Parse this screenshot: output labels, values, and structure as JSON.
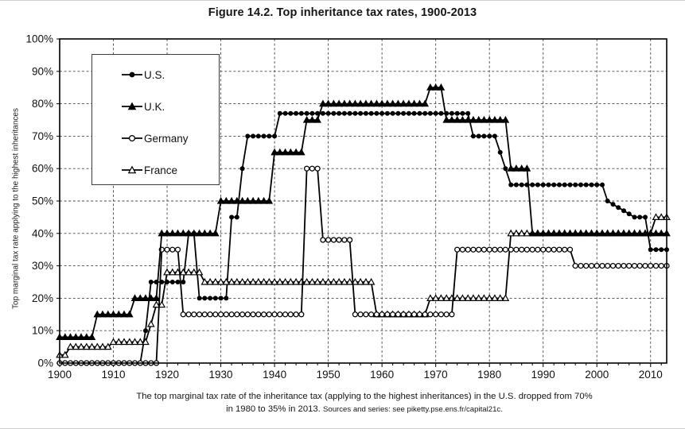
{
  "title": "Figure 14.2. Top inheritance tax rates, 1900-2013",
  "caption": {
    "line1": "The top marginal tax rate of the inheritance tax (applying to the highest inheritances) in the U.S. dropped from 70%",
    "line2_main": "in 1980 to 35% in 2013.",
    "source": "Sources and series: see piketty.pse.ens.fr/capital21c."
  },
  "legend": [
    {
      "id": "us",
      "label": "U.S.",
      "marker": "filled-circle"
    },
    {
      "id": "uk",
      "label": "U.K.",
      "marker": "filled-triangle"
    },
    {
      "id": "germany",
      "label": "Germany",
      "marker": "open-circle"
    },
    {
      "id": "france",
      "label": "France",
      "marker": "open-triangle"
    }
  ],
  "colors": {
    "line": "#000000",
    "grid": "#4a4a4a",
    "background": "#ffffff",
    "text": "#111111"
  },
  "chart_data": {
    "type": "line",
    "title": "Figure 14.2. Top inheritance tax rates, 1900-2013",
    "xlabel": "",
    "ylabel": "Top marginal tax rate applying to the highest inheritances",
    "x_range": [
      1900,
      2013
    ],
    "y_range": [
      0,
      100
    ],
    "x_ticks": [
      1900,
      1910,
      1920,
      1930,
      1940,
      1950,
      1960,
      1970,
      1980,
      1990,
      2000,
      2010
    ],
    "y_tick_values": [
      0,
      10,
      20,
      30,
      40,
      50,
      60,
      70,
      80,
      90,
      100
    ],
    "y_tick_labels": [
      "0%",
      "10%",
      "20%",
      "30%",
      "40%",
      "50%",
      "60%",
      "70%",
      "80%",
      "90%",
      "100%"
    ],
    "grid": true,
    "legend_position": "upper left",
    "marker_step_years": 1,
    "draw_order": [
      "us",
      "france",
      "germany",
      "uk"
    ],
    "series": [
      {
        "id": "us",
        "name": "U.S.",
        "marker": "filled-circle",
        "segments": [
          [
            1900,
            1915,
            0
          ],
          [
            1916,
            1916,
            10
          ],
          [
            1917,
            1923,
            25
          ],
          [
            1924,
            1925,
            40
          ],
          [
            1926,
            1931,
            20
          ],
          [
            1932,
            1933,
            45
          ],
          [
            1934,
            1934,
            60
          ],
          [
            1935,
            1940,
            70
          ],
          [
            1941,
            1976,
            77
          ],
          [
            1977,
            1981,
            70
          ],
          [
            1982,
            1982,
            65
          ],
          [
            1983,
            1983,
            60
          ],
          [
            1984,
            2001,
            55
          ],
          [
            2002,
            2002,
            50
          ],
          [
            2003,
            2003,
            49
          ],
          [
            2004,
            2004,
            48
          ],
          [
            2005,
            2005,
            47
          ],
          [
            2006,
            2006,
            46
          ],
          [
            2007,
            2009,
            45
          ],
          [
            2010,
            2013,
            35
          ]
        ]
      },
      {
        "id": "uk",
        "name": "U.K.",
        "marker": "filled-triangle",
        "segments": [
          [
            1900,
            1906,
            8
          ],
          [
            1907,
            1913,
            15
          ],
          [
            1914,
            1918,
            20
          ],
          [
            1919,
            1929,
            40
          ],
          [
            1930,
            1939,
            50
          ],
          [
            1940,
            1945,
            65
          ],
          [
            1946,
            1948,
            75
          ],
          [
            1949,
            1968,
            80
          ],
          [
            1969,
            1971,
            85
          ],
          [
            1972,
            1983,
            75
          ],
          [
            1984,
            1987,
            60
          ],
          [
            1988,
            2013,
            40
          ]
        ]
      },
      {
        "id": "germany",
        "name": "Germany",
        "marker": "open-circle",
        "segments": [
          [
            1900,
            1918,
            0
          ],
          [
            1919,
            1922,
            35
          ],
          [
            1923,
            1945,
            15
          ],
          [
            1946,
            1948,
            60
          ],
          [
            1949,
            1954,
            38
          ],
          [
            1955,
            1973,
            15
          ],
          [
            1974,
            1995,
            35
          ],
          [
            1996,
            2013,
            30
          ]
        ]
      },
      {
        "id": "france",
        "name": "France",
        "marker": "open-triangle",
        "segments": [
          [
            1900,
            1901,
            2.5
          ],
          [
            1902,
            1909,
            5
          ],
          [
            1910,
            1916,
            6.5
          ],
          [
            1917,
            1917,
            12
          ],
          [
            1918,
            1919,
            18
          ],
          [
            1920,
            1926,
            28
          ],
          [
            1927,
            1958,
            25
          ],
          [
            1959,
            1968,
            15
          ],
          [
            1969,
            1983,
            20
          ],
          [
            1984,
            2010,
            40
          ],
          [
            2011,
            2013,
            45
          ]
        ]
      }
    ]
  }
}
